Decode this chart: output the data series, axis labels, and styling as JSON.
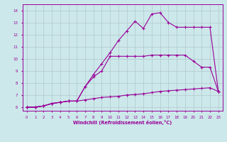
{
  "xlabel": "Windchill (Refroidissement éolien,°C)",
  "background_color": "#cce8ea",
  "grid_color": "#b0c8cc",
  "line_color": "#990099",
  "xlim": [
    -0.5,
    23.5
  ],
  "ylim": [
    5.7,
    14.5
  ],
  "xticks": [
    0,
    1,
    2,
    3,
    4,
    5,
    6,
    7,
    8,
    9,
    10,
    11,
    12,
    13,
    14,
    15,
    16,
    17,
    18,
    19,
    20,
    21,
    22,
    23
  ],
  "yticks": [
    6,
    7,
    8,
    9,
    10,
    11,
    12,
    13,
    14
  ],
  "line1_x": [
    0,
    1,
    2,
    3,
    4,
    5,
    6,
    7,
    8,
    9,
    10,
    11,
    12,
    13,
    14,
    15,
    16,
    17,
    18,
    19,
    20,
    21,
    22,
    23
  ],
  "line1_y": [
    6.0,
    6.0,
    6.1,
    6.3,
    6.4,
    6.5,
    6.5,
    6.6,
    6.7,
    6.8,
    6.85,
    6.9,
    7.0,
    7.05,
    7.1,
    7.2,
    7.3,
    7.35,
    7.4,
    7.45,
    7.5,
    7.55,
    7.6,
    7.3
  ],
  "line2_x": [
    0,
    1,
    2,
    3,
    4,
    5,
    6,
    7,
    8,
    9,
    10,
    11,
    12,
    13,
    14,
    15,
    16,
    17,
    18,
    19,
    20,
    21,
    22,
    23
  ],
  "line2_y": [
    6.0,
    6.0,
    6.1,
    6.3,
    6.4,
    6.5,
    6.5,
    7.7,
    8.5,
    9.0,
    10.2,
    10.2,
    10.2,
    10.2,
    10.2,
    10.3,
    10.3,
    10.3,
    10.3,
    10.3,
    9.8,
    9.3,
    9.3,
    7.3
  ],
  "line3_x": [
    0,
    1,
    2,
    3,
    4,
    5,
    6,
    7,
    8,
    9,
    10,
    11,
    12,
    13,
    14,
    15,
    16,
    17,
    18,
    19,
    20,
    21,
    22,
    23
  ],
  "line3_y": [
    6.0,
    6.0,
    6.1,
    6.3,
    6.4,
    6.5,
    6.5,
    7.7,
    8.7,
    9.6,
    10.5,
    11.5,
    12.3,
    13.1,
    12.5,
    13.7,
    13.8,
    13.0,
    12.6,
    12.6,
    12.6,
    12.6,
    12.6,
    7.3
  ],
  "marker": "+"
}
